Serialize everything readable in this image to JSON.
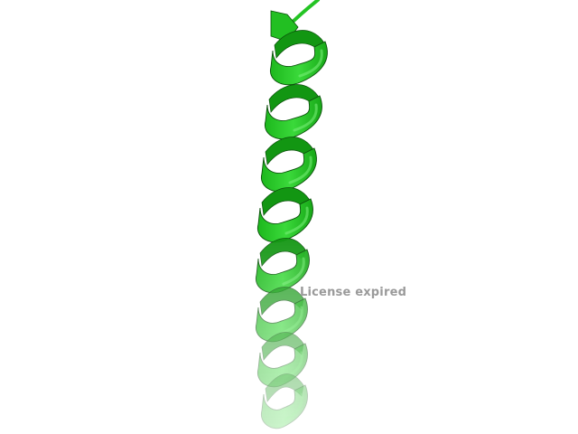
{
  "viewer": {
    "watermark": "License expired",
    "structure": "alpha-helix",
    "representation": "cartoon"
  },
  "colors": {
    "background": "#ffffff",
    "helix_front": "#22c722",
    "helix_back": "#129612",
    "helix_edge": "#0a4f0a",
    "watermark": "#9a9a9a"
  }
}
